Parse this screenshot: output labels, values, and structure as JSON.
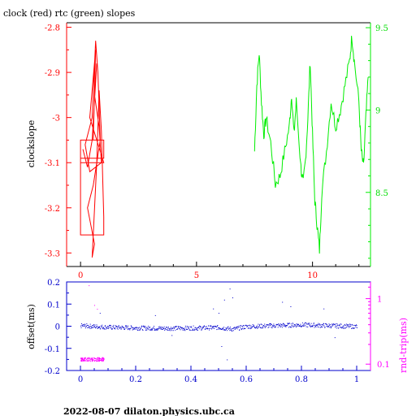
{
  "header": {
    "title": "clock (red) rtc (green) slopes"
  },
  "footer": {
    "text": "2022-08-07  dilaton.physics.ubc.ca"
  },
  "colors": {
    "red": "#ff0000",
    "green": "#00ee00",
    "blue": "#0000cc",
    "magenta": "#ff00ff",
    "axis": "#000000"
  },
  "chart_data": [
    {
      "type": "line",
      "title": "clock (red) rtc (green) slopes",
      "ylabel": "clockslope",
      "y2label": "",
      "xlim": [
        -0.6,
        12.5
      ],
      "ylim": [
        -3.33,
        -2.79
      ],
      "y2lim": [
        8.05,
        9.53
      ],
      "x_ticks": [
        "0",
        "5",
        "10"
      ],
      "y_ticks": [
        "-2.8",
        "-2.9",
        "-3",
        "-3.1",
        "-3.2",
        "-3.3"
      ],
      "y2_ticks": [
        "9.5",
        "9",
        "8.5"
      ],
      "series": [
        {
          "color": "#ff0000",
          "axis": "left",
          "points": [
            [
              0.1,
              -3.07
            ],
            [
              0.3,
              -3.11
            ],
            [
              0.5,
              -3.05
            ],
            [
              0.7,
              -2.88
            ],
            [
              0.6,
              -2.95
            ],
            [
              0.8,
              -3.02
            ],
            [
              0.9,
              -3.1
            ],
            [
              0.4,
              -3.12
            ],
            [
              0.2,
              -3.06
            ],
            [
              0.5,
              -3.0
            ],
            [
              0.65,
              -2.83
            ],
            [
              0.75,
              -2.9
            ],
            [
              0.85,
              -3.05
            ],
            [
              0.55,
              -3.15
            ],
            [
              0.3,
              -3.2
            ],
            [
              0.6,
              -3.28
            ],
            [
              0.5,
              -3.31
            ],
            [
              0.7,
              -3.1
            ],
            [
              0.8,
              -2.94
            ],
            [
              0.9,
              -3.03
            ],
            [
              1.0,
              -3.22
            ],
            [
              1.0,
              -3.26
            ],
            [
              0.0,
              -3.26
            ],
            [
              0.0,
              -3.09
            ],
            [
              1.0,
              -3.09
            ],
            [
              1.0,
              -3.05
            ],
            [
              0.0,
              -3.05
            ],
            [
              0.0,
              -3.1
            ],
            [
              1.0,
              -3.1
            ],
            [
              0.4,
              -3.0
            ],
            [
              0.65,
              -2.85
            ],
            [
              0.55,
              -3.05
            ]
          ]
        },
        {
          "color": "#00ee00",
          "axis": "right",
          "points": [
            [
              7.5,
              8.75
            ],
            [
              7.6,
              9.15
            ],
            [
              7.7,
              9.35
            ],
            [
              7.8,
              9.05
            ],
            [
              7.9,
              8.85
            ],
            [
              8.0,
              8.95
            ],
            [
              8.2,
              8.8
            ],
            [
              8.4,
              8.55
            ],
            [
              8.6,
              8.6
            ],
            [
              8.8,
              8.75
            ],
            [
              9.0,
              8.9
            ],
            [
              9.1,
              9.1
            ],
            [
              9.2,
              8.85
            ],
            [
              9.3,
              9.05
            ],
            [
              9.5,
              8.65
            ],
            [
              9.6,
              8.55
            ],
            [
              9.7,
              8.7
            ],
            [
              9.8,
              8.95
            ],
            [
              9.9,
              9.3
            ],
            [
              10.0,
              8.85
            ],
            [
              10.1,
              8.45
            ],
            [
              10.2,
              8.3
            ],
            [
              10.3,
              8.15
            ],
            [
              10.4,
              8.5
            ],
            [
              10.6,
              8.75
            ],
            [
              10.8,
              9.05
            ],
            [
              11.0,
              8.9
            ],
            [
              11.2,
              9.0
            ],
            [
              11.4,
              9.15
            ],
            [
              11.6,
              9.3
            ],
            [
              11.7,
              9.45
            ],
            [
              11.8,
              9.3
            ],
            [
              12.0,
              9.05
            ],
            [
              12.1,
              8.75
            ],
            [
              12.2,
              8.65
            ],
            [
              12.3,
              8.95
            ],
            [
              12.4,
              9.2
            ]
          ]
        }
      ]
    },
    {
      "type": "scatter",
      "ylabel": "offset(ms)",
      "y2label": "rnd-trip(ms)",
      "xlim": [
        -0.05,
        1.05
      ],
      "ylim": [
        -0.2,
        0.2
      ],
      "y2lim": [
        0.08,
        1.8
      ],
      "y2_scale": "log",
      "x_ticks": [
        "0",
        "0.2",
        "0.4",
        "0.6",
        "0.8",
        "1"
      ],
      "y_ticks": [
        "0.2",
        "0.1",
        "0",
        "-0.1",
        "-0.2"
      ],
      "y2_ticks": [
        "1",
        "0.1"
      ],
      "series": [
        {
          "color": "#0000cc",
          "axis": "left",
          "description_values": "offsets scattered near 0 with noise ±0.01, outliers up to ±0.17 near x 0.5–0.55",
          "segments": [
            [
              0.0,
              0.004
            ],
            [
              0.1,
              -0.003
            ],
            [
              0.2,
              -0.006
            ],
            [
              0.3,
              -0.008
            ],
            [
              0.4,
              -0.007
            ],
            [
              0.5,
              -0.004
            ],
            [
              0.55,
              -0.012
            ],
            [
              0.6,
              0.0
            ],
            [
              0.7,
              0.004
            ],
            [
              0.8,
              0.008
            ],
            [
              0.9,
              0.004
            ],
            [
              1.0,
              0.0
            ]
          ],
          "outliers": [
            [
              0.48,
              0.08
            ],
            [
              0.5,
              0.06
            ],
            [
              0.52,
              0.12
            ],
            [
              0.54,
              0.17
            ],
            [
              0.55,
              0.13
            ],
            [
              0.53,
              -0.15
            ],
            [
              0.51,
              -0.09
            ],
            [
              0.73,
              0.11
            ],
            [
              0.76,
              0.09
            ],
            [
              0.88,
              0.08
            ],
            [
              0.92,
              -0.05
            ],
            [
              0.27,
              0.05
            ],
            [
              0.33,
              -0.04
            ],
            [
              0.07,
              0.06
            ]
          ]
        },
        {
          "color": "#ff00ff",
          "axis": "right",
          "name": "",
          "cluster": {
            "x_range": [
              0.0,
              0.085
            ],
            "y_center": 0.12,
            "spread": 0.008
          },
          "outliers": [
            [
              0.03,
              1.6
            ],
            [
              0.05,
              0.8
            ],
            [
              0.06,
              0.7
            ]
          ]
        }
      ]
    }
  ]
}
